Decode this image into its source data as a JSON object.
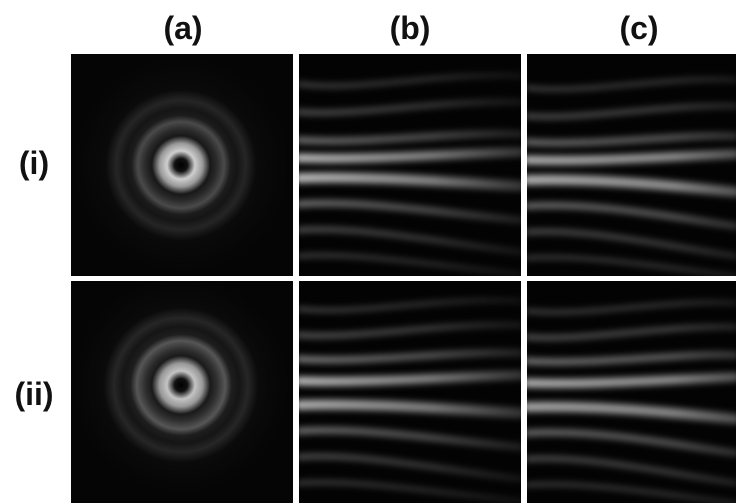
{
  "columns": [
    {
      "label": "(a)"
    },
    {
      "label": "(b)"
    },
    {
      "label": "(c)"
    }
  ],
  "rows": [
    {
      "label": "(i)"
    },
    {
      "label": "(ii)"
    }
  ],
  "panels": [
    {
      "row": "(i)",
      "column": "(a)",
      "pattern": "concentric-rings"
    },
    {
      "row": "(i)",
      "column": "(b)",
      "pattern": "horizontal-fringes"
    },
    {
      "row": "(i)",
      "column": "(c)",
      "pattern": "horizontal-fringes"
    },
    {
      "row": "(ii)",
      "column": "(a)",
      "pattern": "concentric-rings"
    },
    {
      "row": "(ii)",
      "column": "(b)",
      "pattern": "horizontal-fringes"
    },
    {
      "row": "(ii)",
      "column": "(c)",
      "pattern": "horizontal-fringes"
    }
  ],
  "colors": {
    "background": "#ffffff",
    "panel": "#000000",
    "intensity": "#d8d8d8"
  }
}
